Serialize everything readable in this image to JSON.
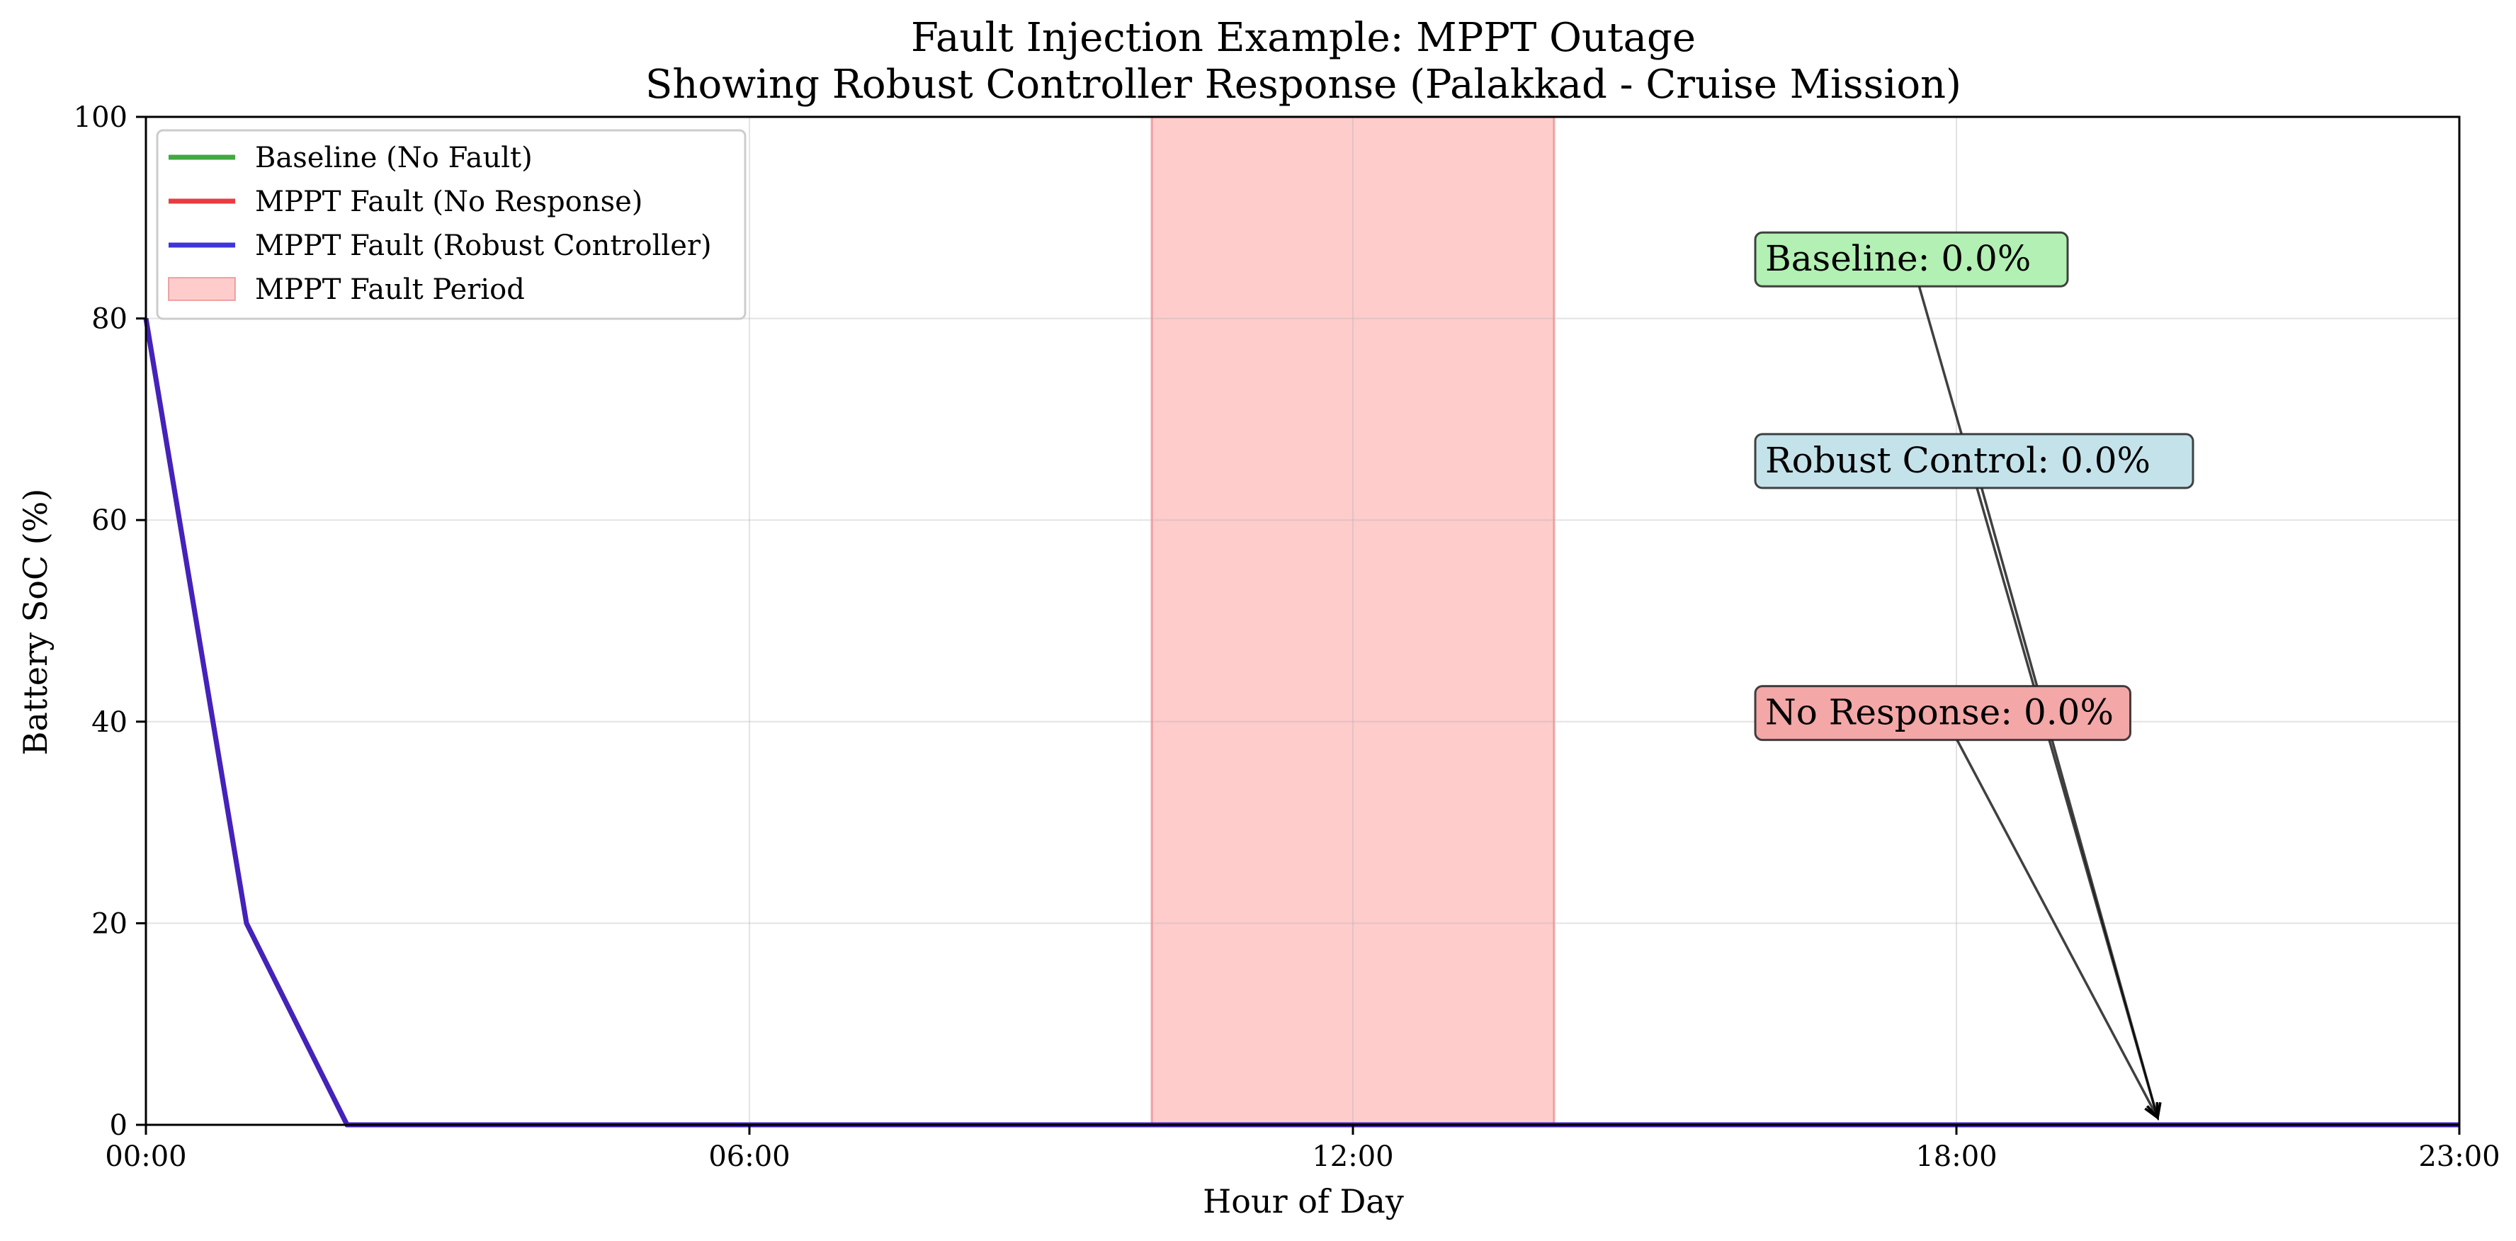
{
  "chart_data": {
    "type": "line",
    "title": "Fault Injection Example: MPPT Outage",
    "subtitle": "Showing Robust Controller Response (Palakkad - Cruise Mission)",
    "xlabel": "Hour of Day",
    "ylabel": "Battery SoC (%)",
    "xlim": [
      0,
      23
    ],
    "ylim": [
      0,
      100
    ],
    "xticks": [
      0,
      6,
      12,
      18,
      23
    ],
    "xtick_labels": [
      "00:00",
      "06:00",
      "12:00",
      "18:00",
      "23:00"
    ],
    "yticks": [
      0,
      20,
      40,
      60,
      80,
      100
    ],
    "ytick_labels": [
      "0",
      "20",
      "40",
      "60",
      "80",
      "100"
    ],
    "grid": true,
    "legend_position": "top-left",
    "x": [
      0,
      1,
      2,
      3,
      4,
      5,
      6,
      7,
      8,
      9,
      10,
      11,
      12,
      13,
      14,
      15,
      16,
      17,
      18,
      19,
      20,
      21,
      22,
      23
    ],
    "series": [
      {
        "name": "Baseline (No Fault)",
        "color": "#2ca02c",
        "values": [
          80,
          20,
          0,
          0,
          0,
          0,
          0,
          0,
          0,
          0,
          0,
          0,
          0,
          0,
          0,
          0,
          0,
          0,
          0,
          0,
          0,
          0,
          0,
          0
        ]
      },
      {
        "name": "MPPT Fault (No Response)",
        "color": "#e8262d",
        "values": [
          80,
          20,
          0,
          0,
          0,
          0,
          0,
          0,
          0,
          0,
          0,
          0,
          0,
          0,
          0,
          0,
          0,
          0,
          0,
          0,
          0,
          0,
          0,
          0
        ]
      },
      {
        "name": "MPPT Fault (Robust Controller)",
        "color": "#2a1fd6",
        "values": [
          80,
          20,
          0,
          0,
          0,
          0,
          0,
          0,
          0,
          0,
          0,
          0,
          0,
          0,
          0,
          0,
          0,
          0,
          0,
          0,
          0,
          0,
          0,
          0
        ]
      }
    ],
    "fault_period": {
      "name": "MPPT Fault Period",
      "start": 10,
      "end": 14,
      "color": "#ff9999"
    },
    "annotations": [
      {
        "text": "Baseline: 0.0%",
        "text_x": 16,
        "text_y": 86,
        "target_x": 20,
        "target_y": 0,
        "bg": "#b3f0b3"
      },
      {
        "text": "Robust Control: 0.0%",
        "text_x": 16,
        "text_y": 66,
        "target_x": 20,
        "target_y": 0,
        "bg": "#c4e2ea"
      },
      {
        "text": "No Response: 0.0%",
        "text_x": 16,
        "text_y": 41,
        "target_x": 20,
        "target_y": 0,
        "bg": "#f3a7a7"
      }
    ]
  }
}
